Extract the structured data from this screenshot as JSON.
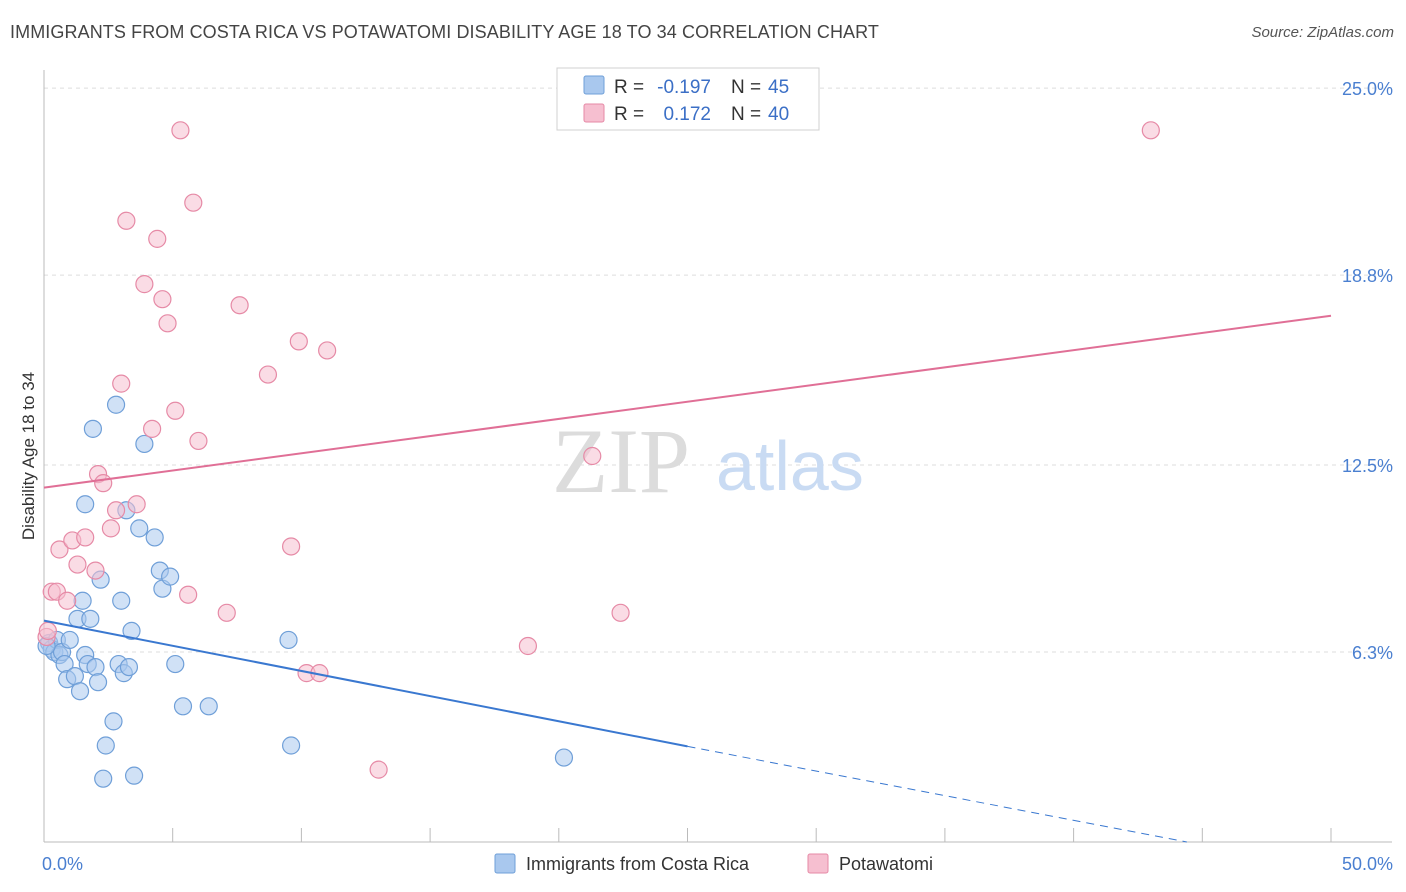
{
  "header": {
    "title": "IMMIGRANTS FROM COSTA RICA VS POTAWATOMI DISABILITY AGE 18 TO 34 CORRELATION CHART",
    "source": "Source: ZipAtlas.com"
  },
  "watermark": {
    "zip": "ZIP",
    "atlas": "atlas"
  },
  "colors": {
    "blue_fill": "#a9c8ee",
    "blue_stroke": "#6f9fd8",
    "blue_line": "#3a78d0",
    "pink_fill": "#f6bfd0",
    "pink_stroke": "#e68aa6",
    "pink_line": "#e06f96",
    "tick_text": "#4a7fd0",
    "grid": "#dddddd"
  },
  "legend": {
    "rows": [
      {
        "r_label": "R =",
        "r_value": "-0.197",
        "n_label": "N =",
        "n_value": "45"
      },
      {
        "r_label": "R =",
        "r_value": "0.172",
        "n_label": "N =",
        "n_value": "40"
      }
    ]
  },
  "bottom_legend": [
    "Immigrants from Costa Rica",
    "Potawatomi"
  ],
  "chart_data": {
    "type": "scatter",
    "title": "IMMIGRANTS FROM COSTA RICA VS POTAWATOMI DISABILITY AGE 18 TO 34 CORRELATION CHART",
    "xlabel": "",
    "ylabel": "Disability Age 18 to 34",
    "xlim": [
      0,
      50
    ],
    "ylim": [
      0,
      25.6
    ],
    "x_tick_labels": [
      "0.0%",
      "50.0%"
    ],
    "y_ticks": [
      6.3,
      12.5,
      18.8,
      25.0
    ],
    "y_tick_labels": [
      "6.3%",
      "12.5%",
      "18.8%",
      "25.0%"
    ],
    "grid": true,
    "legend_position": "top-center",
    "series": [
      {
        "name": "Immigrants from Costa Rica",
        "color": "#6f9fd8",
        "points": [
          [
            0.2,
            6.6
          ],
          [
            0.3,
            6.4
          ],
          [
            0.4,
            6.3
          ],
          [
            0.5,
            6.7
          ],
          [
            0.6,
            6.2
          ],
          [
            0.7,
            6.3
          ],
          [
            0.8,
            5.9
          ],
          [
            0.9,
            5.4
          ],
          [
            1.0,
            6.7
          ],
          [
            1.2,
            5.5
          ],
          [
            1.3,
            7.4
          ],
          [
            1.4,
            5.0
          ],
          [
            1.5,
            8.0
          ],
          [
            1.6,
            6.2
          ],
          [
            1.7,
            5.9
          ],
          [
            1.6,
            11.2
          ],
          [
            1.8,
            7.4
          ],
          [
            1.9,
            13.7
          ],
          [
            2.0,
            5.8
          ],
          [
            2.1,
            5.3
          ],
          [
            2.2,
            8.7
          ],
          [
            2.3,
            2.1
          ],
          [
            2.4,
            3.2
          ],
          [
            2.7,
            4.0
          ],
          [
            2.8,
            14.5
          ],
          [
            2.9,
            5.9
          ],
          [
            3.0,
            8.0
          ],
          [
            3.1,
            5.6
          ],
          [
            3.2,
            11.0
          ],
          [
            3.3,
            5.8
          ],
          [
            3.4,
            7.0
          ],
          [
            3.5,
            2.2
          ],
          [
            3.7,
            10.4
          ],
          [
            3.9,
            13.2
          ],
          [
            4.3,
            10.1
          ],
          [
            4.5,
            9.0
          ],
          [
            4.6,
            8.4
          ],
          [
            4.9,
            8.8
          ],
          [
            5.1,
            5.9
          ],
          [
            5.4,
            4.5
          ],
          [
            6.4,
            4.5
          ],
          [
            9.5,
            6.7
          ],
          [
            9.6,
            3.2
          ],
          [
            20.2,
            2.8
          ],
          [
            0.1,
            6.5
          ]
        ]
      },
      {
        "name": "Potawatomi",
        "color": "#e68aa6",
        "points": [
          [
            0.1,
            6.8
          ],
          [
            0.3,
            8.3
          ],
          [
            0.5,
            8.3
          ],
          [
            0.6,
            9.7
          ],
          [
            0.9,
            8.0
          ],
          [
            1.1,
            10.0
          ],
          [
            1.3,
            9.2
          ],
          [
            1.6,
            10.1
          ],
          [
            2.0,
            9.0
          ],
          [
            2.1,
            12.2
          ],
          [
            2.3,
            11.9
          ],
          [
            2.6,
            10.4
          ],
          [
            2.8,
            11.0
          ],
          [
            3.0,
            15.2
          ],
          [
            3.2,
            20.6
          ],
          [
            3.6,
            11.2
          ],
          [
            3.9,
            18.5
          ],
          [
            4.2,
            13.7
          ],
          [
            4.4,
            20.0
          ],
          [
            4.6,
            18.0
          ],
          [
            4.8,
            17.2
          ],
          [
            5.1,
            14.3
          ],
          [
            5.3,
            23.6
          ],
          [
            5.6,
            8.2
          ],
          [
            5.8,
            21.2
          ],
          [
            6.0,
            13.3
          ],
          [
            7.1,
            7.6
          ],
          [
            7.6,
            17.8
          ],
          [
            8.7,
            15.5
          ],
          [
            9.6,
            9.8
          ],
          [
            9.9,
            16.6
          ],
          [
            10.2,
            5.6
          ],
          [
            10.7,
            5.6
          ],
          [
            11.0,
            16.3
          ],
          [
            13.0,
            2.4
          ],
          [
            18.8,
            6.5
          ],
          [
            21.3,
            12.8
          ],
          [
            22.4,
            7.6
          ],
          [
            43.0,
            23.6
          ],
          [
            0.15,
            7.0
          ]
        ]
      }
    ],
    "trend_lines": [
      {
        "series": "Immigrants from Costa Rica",
        "x0": 0,
        "y0": 7.34,
        "x1": 25,
        "y1": 3.17,
        "dashed_to_x": 44.4,
        "dashed_to_y": 0.0
      },
      {
        "series": "Potawatomi",
        "x0": 0,
        "y0": 11.75,
        "x1": 50,
        "y1": 17.45
      }
    ]
  }
}
